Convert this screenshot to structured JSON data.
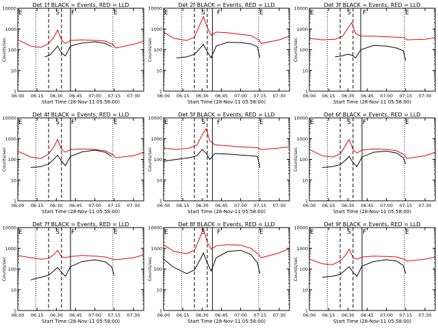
{
  "colors": {
    "events": "#000000",
    "lld": "#e00000",
    "axes": "#000000"
  },
  "chart_data": [
    {
      "type": "line",
      "title": "Det 1f BLACK = Events, RED = LLD",
      "xlabel": "Start Time (28-Nov-11 05:58:00)",
      "ylabel": "Counts/sec",
      "xticks": [
        "06:00",
        "06:15",
        "06:30",
        "06:45",
        "07:00",
        "07:15",
        "07:30"
      ],
      "yticks": [
        "1",
        "10",
        "100",
        "1000",
        "10000"
      ],
      "ylim": [
        1,
        10000
      ],
      "xlim": [
        "06:00",
        "07:38"
      ],
      "yscale": "log",
      "markers": {
        "E": [
          "06:00",
          "07:14"
        ],
        "S": "06:31",
        "F": "06:41"
      },
      "dotted_lines": [
        "06:14",
        "07:14"
      ],
      "dashed_lines": [
        "06:24",
        "06:34"
      ],
      "solid_lines": [
        "06:41"
      ],
      "series": [
        {
          "color": "#e00000",
          "x": [
            "06:00",
            "06:10",
            "06:18",
            "06:24",
            "06:28",
            "06:31",
            "06:34",
            "06:37",
            "06:41",
            "06:50",
            "07:00",
            "07:08",
            "07:14",
            "07:16",
            "07:30",
            "07:38"
          ],
          "y": [
            300,
            150,
            130,
            200,
            400,
            900,
            300,
            200,
            280,
            300,
            280,
            260,
            180,
            120,
            180,
            260
          ]
        },
        {
          "color": "#000000",
          "x": [
            "06:21",
            "06:25",
            "06:28",
            "06:31",
            "06:34",
            "06:37",
            "06:41",
            "06:50",
            "07:00",
            "07:08",
            "07:13"
          ],
          "y": [
            45,
            55,
            90,
            150,
            70,
            50,
            150,
            210,
            240,
            200,
            140
          ]
        }
      ]
    },
    {
      "type": "line",
      "title": "Det 2f BLACK = Events, RED = LLD",
      "xlabel": "Start Time (28-Nov-11 05:58:00)",
      "ylabel": "Counts/sec",
      "xticks": [
        "06:00",
        "06:15",
        "06:30",
        "06:45",
        "07:00",
        "07:15",
        "07:30"
      ],
      "yticks": [
        "1",
        "10",
        "100",
        "1000",
        "10000"
      ],
      "ylim": [
        1,
        10000
      ],
      "xlim": [
        "06:00",
        "07:38"
      ],
      "yscale": "log",
      "markers": {
        "E": [
          "06:00",
          "07:14"
        ],
        "S": "06:31",
        "F": "06:41"
      },
      "dotted_lines": [
        "06:14",
        "07:14"
      ],
      "dashed_lines": [
        "06:24",
        "06:34"
      ],
      "solid_lines": [
        "06:38"
      ],
      "series": [
        {
          "color": "#e00000",
          "x": [
            "06:00",
            "06:08",
            "06:18",
            "06:24",
            "06:28",
            "06:31",
            "06:34",
            "06:37",
            "06:41",
            "06:50",
            "07:00",
            "07:08",
            "07:14",
            "07:16",
            "07:30",
            "07:38"
          ],
          "y": [
            700,
            350,
            280,
            400,
            1500,
            4000,
            1200,
            500,
            700,
            650,
            550,
            480,
            300,
            200,
            300,
            450
          ]
        },
        {
          "color": "#000000",
          "x": [
            "06:10",
            "06:18",
            "06:24",
            "06:28",
            "06:31",
            "06:34",
            "06:37",
            "06:41",
            "06:50",
            "07:00",
            "07:08",
            "07:13",
            "07:15"
          ],
          "y": [
            40,
            45,
            60,
            110,
            180,
            80,
            40,
            150,
            230,
            220,
            190,
            140,
            40
          ]
        }
      ]
    },
    {
      "type": "line",
      "title": "Det 3f BLACK = Events, RED = LLD",
      "xlabel": "Start Time (28-Nov-11 05:58:00)",
      "ylabel": "Counts/sec",
      "xticks": [
        "06:00",
        "06:15",
        "06:30",
        "06:45",
        "07:00",
        "07:15",
        "07:30"
      ],
      "yticks": [
        "1",
        "10",
        "100",
        "1000",
        "10000"
      ],
      "ylim": [
        1,
        10000
      ],
      "xlim": [
        "06:00",
        "07:38"
      ],
      "yscale": "log",
      "markers": {
        "E": [
          "06:00",
          "07:14"
        ],
        "S": "06:31",
        "F": "06:41"
      },
      "dotted_lines": [
        "06:14",
        "07:14"
      ],
      "dashed_lines": [
        "06:24",
        "06:34"
      ],
      "solid_lines": [
        "06:40"
      ],
      "series": [
        {
          "color": "#e00000",
          "x": [
            "06:00",
            "06:10",
            "06:20",
            "06:26",
            "06:30",
            "06:33",
            "06:36",
            "06:40",
            "06:50",
            "07:00",
            "07:08",
            "07:14",
            "07:16",
            "07:30",
            "07:38"
          ],
          "y": [
            350,
            300,
            320,
            450,
            1100,
            2000,
            600,
            450,
            450,
            420,
            400,
            380,
            300,
            320,
            380
          ]
        },
        {
          "color": "#000000",
          "x": [
            "06:20",
            "06:25",
            "06:30",
            "06:33",
            "06:36",
            "06:40",
            "06:50",
            "07:00",
            "07:08",
            "07:13",
            "07:15"
          ],
          "y": [
            45,
            50,
            60,
            55,
            40,
            100,
            160,
            150,
            120,
            90,
            30
          ]
        }
      ]
    },
    {
      "type": "line",
      "title": "Det 4f BLACK = Events, RED = LLD",
      "xlabel": "Start Time (28-Nov-11 05:58:00)",
      "ylabel": "Counts/sec",
      "xticks": [
        "06:00",
        "06:15",
        "06:30",
        "06:45",
        "07:00",
        "07:15",
        "07:30"
      ],
      "yticks": [
        "1",
        "10",
        "100",
        "1000",
        "10000"
      ],
      "ylim": [
        1,
        10000
      ],
      "xlim": [
        "06:00",
        "07:38"
      ],
      "yscale": "log",
      "markers": {
        "E": [
          "06:00",
          "07:14"
        ],
        "S": "06:31",
        "F": "06:41"
      },
      "dotted_lines": [
        "06:14",
        "07:14"
      ],
      "dashed_lines": [
        "06:24",
        "06:34"
      ],
      "solid_lines": [
        "06:41"
      ],
      "series": [
        {
          "color": "#e00000",
          "x": [
            "06:00",
            "06:10",
            "06:18",
            "06:24",
            "06:28",
            "06:31",
            "06:34",
            "06:37",
            "06:41",
            "06:50",
            "07:00",
            "07:08",
            "07:14",
            "07:16",
            "07:30",
            "07:38"
          ],
          "y": [
            250,
            130,
            110,
            180,
            400,
            900,
            300,
            220,
            300,
            320,
            300,
            260,
            170,
            120,
            150,
            220
          ]
        },
        {
          "color": "#000000",
          "x": [
            "06:10",
            "06:18",
            "06:24",
            "06:28",
            "06:31",
            "06:34",
            "06:37",
            "06:41",
            "06:50",
            "07:00",
            "07:08",
            "07:13"
          ],
          "y": [
            40,
            45,
            60,
            100,
            160,
            80,
            50,
            140,
            230,
            280,
            220,
            140
          ]
        }
      ]
    },
    {
      "type": "line",
      "title": "Det 5f BLACK = Events, RED = LLD",
      "xlabel": "Start Time (28-Nov-11 05:58:00)",
      "ylabel": "Counts/sec",
      "xticks": [
        "06:00",
        "06:15",
        "06:30",
        "06:45",
        "07:00",
        "07:15",
        "07:30"
      ],
      "yticks": [
        "1",
        "10",
        "100",
        "1000",
        "10000"
      ],
      "ylim": [
        1,
        10000
      ],
      "xlim": [
        "06:00",
        "07:38"
      ],
      "yscale": "log",
      "markers": {
        "E": [
          "06:00",
          "07:14"
        ],
        "S": "06:31",
        "F": "06:41"
      },
      "dotted_lines": [
        "06:14",
        "07:14"
      ],
      "dashed_lines": [
        "06:24",
        "06:34"
      ],
      "solid_lines": [
        "06:38"
      ],
      "series": [
        {
          "color": "#e00000",
          "x": [
            "06:00",
            "06:10",
            "06:20",
            "06:26",
            "06:30",
            "06:33",
            "06:36",
            "06:40",
            "06:50",
            "07:00",
            "07:08",
            "07:14",
            "07:16",
            "07:30",
            "07:38"
          ],
          "y": [
            350,
            300,
            350,
            500,
            1500,
            3000,
            800,
            500,
            450,
            400,
            380,
            350,
            300,
            350,
            400
          ]
        },
        {
          "color": "#000000",
          "x": [
            "06:00",
            "06:10",
            "06:20",
            "06:26",
            "06:30",
            "06:33",
            "06:36",
            "06:40",
            "06:50",
            "07:00",
            "07:08",
            "07:13",
            "07:15"
          ],
          "y": [
            80,
            100,
            120,
            150,
            300,
            200,
            100,
            190,
            180,
            160,
            150,
            140,
            40
          ]
        }
      ]
    },
    {
      "type": "line",
      "title": "Det 6f BLACK = Events, RED = LLD",
      "xlabel": "Start Time (28-Nov-11 05:58:00)",
      "ylabel": "Counts/sec",
      "xticks": [
        "06:00",
        "06:15",
        "06:30",
        "06:45",
        "07:00",
        "07:15",
        "07:30"
      ],
      "yticks": [
        "1",
        "10",
        "100",
        "1000",
        "10000"
      ],
      "ylim": [
        1,
        10000
      ],
      "xlim": [
        "06:00",
        "07:38"
      ],
      "yscale": "log",
      "markers": {
        "E": [
          "06:00",
          "07:14"
        ],
        "S": "06:31",
        "F": "06:41"
      },
      "dotted_lines": [
        "06:14",
        "07:14"
      ],
      "dashed_lines": [
        "06:24",
        "06:34"
      ],
      "solid_lines": [
        "06:41"
      ],
      "series": [
        {
          "color": "#e00000",
          "x": [
            "06:00",
            "06:10",
            "06:18",
            "06:24",
            "06:28",
            "06:31",
            "06:34",
            "06:37",
            "06:41",
            "06:50",
            "07:00",
            "07:08",
            "07:14",
            "07:16",
            "07:30",
            "07:38"
          ],
          "y": [
            300,
            150,
            130,
            180,
            450,
            900,
            300,
            200,
            280,
            320,
            300,
            260,
            160,
            110,
            150,
            220
          ]
        },
        {
          "color": "#000000",
          "x": [
            "06:10",
            "06:18",
            "06:24",
            "06:28",
            "06:31",
            "06:34",
            "06:37",
            "06:41",
            "06:50",
            "07:00",
            "07:08",
            "07:13",
            "07:15"
          ],
          "y": [
            40,
            45,
            55,
            90,
            140,
            70,
            45,
            130,
            220,
            250,
            200,
            120,
            60
          ]
        }
      ]
    },
    {
      "type": "line",
      "title": "Det 7f BLACK = Events, RED = LLD",
      "xlabel": "Start Time (28-Nov-11 05:58:00)",
      "ylabel": "Counts/sec",
      "xticks": [
        "06:00",
        "06:15",
        "06:30",
        "06:45",
        "07:00",
        "07:15",
        "07:30"
      ],
      "yticks": [
        "1",
        "10",
        "100",
        "1000",
        "10000"
      ],
      "ylim": [
        1,
        10000
      ],
      "xlim": [
        "06:00",
        "07:38"
      ],
      "yscale": "log",
      "markers": {
        "E": [
          "06:00",
          "07:14"
        ],
        "S": "06:31",
        "F": "06:41"
      },
      "dotted_lines": [
        "06:14",
        "07:14"
      ],
      "dashed_lines": [
        "06:24",
        "06:34"
      ],
      "solid_lines": [
        "06:41"
      ],
      "series": [
        {
          "color": "#e00000",
          "x": [
            "06:00",
            "06:10",
            "06:18",
            "06:24",
            "06:28",
            "06:31",
            "06:34",
            "06:37",
            "06:41",
            "06:50",
            "07:00",
            "07:08",
            "07:14",
            "07:16",
            "07:30",
            "07:38"
          ],
          "y": [
            450,
            350,
            300,
            320,
            500,
            800,
            400,
            350,
            400,
            450,
            420,
            380,
            300,
            280,
            350,
            480
          ]
        },
        {
          "color": "#000000",
          "x": [
            "06:10",
            "06:18",
            "06:24",
            "06:28",
            "06:31",
            "06:34",
            "06:37",
            "06:41",
            "06:50",
            "07:00",
            "07:08",
            "07:13",
            "07:15"
          ],
          "y": [
            30,
            40,
            50,
            80,
            120,
            70,
            45,
            130,
            230,
            280,
            220,
            130,
            50
          ]
        }
      ]
    },
    {
      "type": "line",
      "title": "Det 8f BLACK = Events, RED = LLD",
      "xlabel": "Start Time (28-Nov-11 05:58:00)",
      "ylabel": "Counts/sec",
      "xticks": [
        "06:00",
        "06:15",
        "06:30",
        "06:45",
        "07:00",
        "07:15",
        "07:30"
      ],
      "yticks": [
        "1",
        "10",
        "100",
        "1000",
        "10000"
      ],
      "ylim": [
        1,
        10000
      ],
      "xlim": [
        "06:00",
        "07:38"
      ],
      "yscale": "log",
      "markers": {
        "E": [
          "06:00",
          "07:14"
        ],
        "S": "06:31",
        "F": "06:41"
      },
      "dotted_lines": [
        "06:14",
        "07:14"
      ],
      "dashed_lines": [
        "06:24",
        "06:34"
      ],
      "solid_lines": [
        "06:38"
      ],
      "series": [
        {
          "color": "#e00000",
          "x": [
            "06:00",
            "06:08",
            "06:18",
            "06:24",
            "06:28",
            "06:31",
            "06:34",
            "06:37",
            "06:41",
            "06:50",
            "07:00",
            "07:08",
            "07:14",
            "07:16",
            "07:30",
            "07:38"
          ],
          "y": [
            1500,
            700,
            550,
            800,
            3000,
            9000,
            2000,
            900,
            1300,
            1500,
            1400,
            1000,
            500,
            350,
            600,
            1000
          ]
        },
        {
          "color": "#000000",
          "x": [
            "06:00",
            "06:08",
            "06:18",
            "06:24",
            "06:28",
            "06:31",
            "06:34",
            "06:37",
            "06:41",
            "06:50",
            "07:00",
            "07:08",
            "07:13",
            "07:15"
          ],
          "y": [
            300,
            120,
            60,
            90,
            250,
            600,
            200,
            80,
            350,
            700,
            800,
            500,
            200,
            60
          ]
        }
      ]
    },
    {
      "type": "line",
      "title": "Det 9f BLACK = Events, RED = LLD",
      "xlabel": "Start Time (28-Nov-11 05:58:00)",
      "ylabel": "Counts/sec",
      "xticks": [
        "06:00",
        "06:15",
        "06:30",
        "06:45",
        "07:00",
        "07:15",
        "07:30"
      ],
      "yticks": [
        "1",
        "10",
        "100",
        "1000",
        "10000"
      ],
      "ylim": [
        1,
        10000
      ],
      "xlim": [
        "06:00",
        "07:38"
      ],
      "yscale": "log",
      "markers": {
        "E": [
          "06:00",
          "07:14"
        ],
        "S": "06:31",
        "F": "06:41"
      },
      "dotted_lines": [
        "06:14",
        "07:14"
      ],
      "dashed_lines": [
        "06:24",
        "06:34"
      ],
      "solid_lines": [
        "06:41"
      ],
      "series": [
        {
          "color": "#e00000",
          "x": [
            "06:00",
            "06:10",
            "06:18",
            "06:24",
            "06:28",
            "06:31",
            "06:34",
            "06:37",
            "06:41",
            "06:50",
            "07:00",
            "07:08",
            "07:14",
            "07:16",
            "07:30",
            "07:38"
          ],
          "y": [
            300,
            180,
            160,
            250,
            450,
            900,
            350,
            300,
            380,
            420,
            400,
            380,
            300,
            240,
            300,
            380
          ]
        },
        {
          "color": "#000000",
          "x": [
            "06:10",
            "06:18",
            "06:24",
            "06:28",
            "06:31",
            "06:34",
            "06:37",
            "06:41",
            "06:50",
            "07:00",
            "07:08",
            "07:13",
            "07:15"
          ],
          "y": [
            40,
            45,
            55,
            90,
            130,
            70,
            45,
            140,
            230,
            280,
            240,
            150,
            60
          ]
        }
      ]
    }
  ]
}
